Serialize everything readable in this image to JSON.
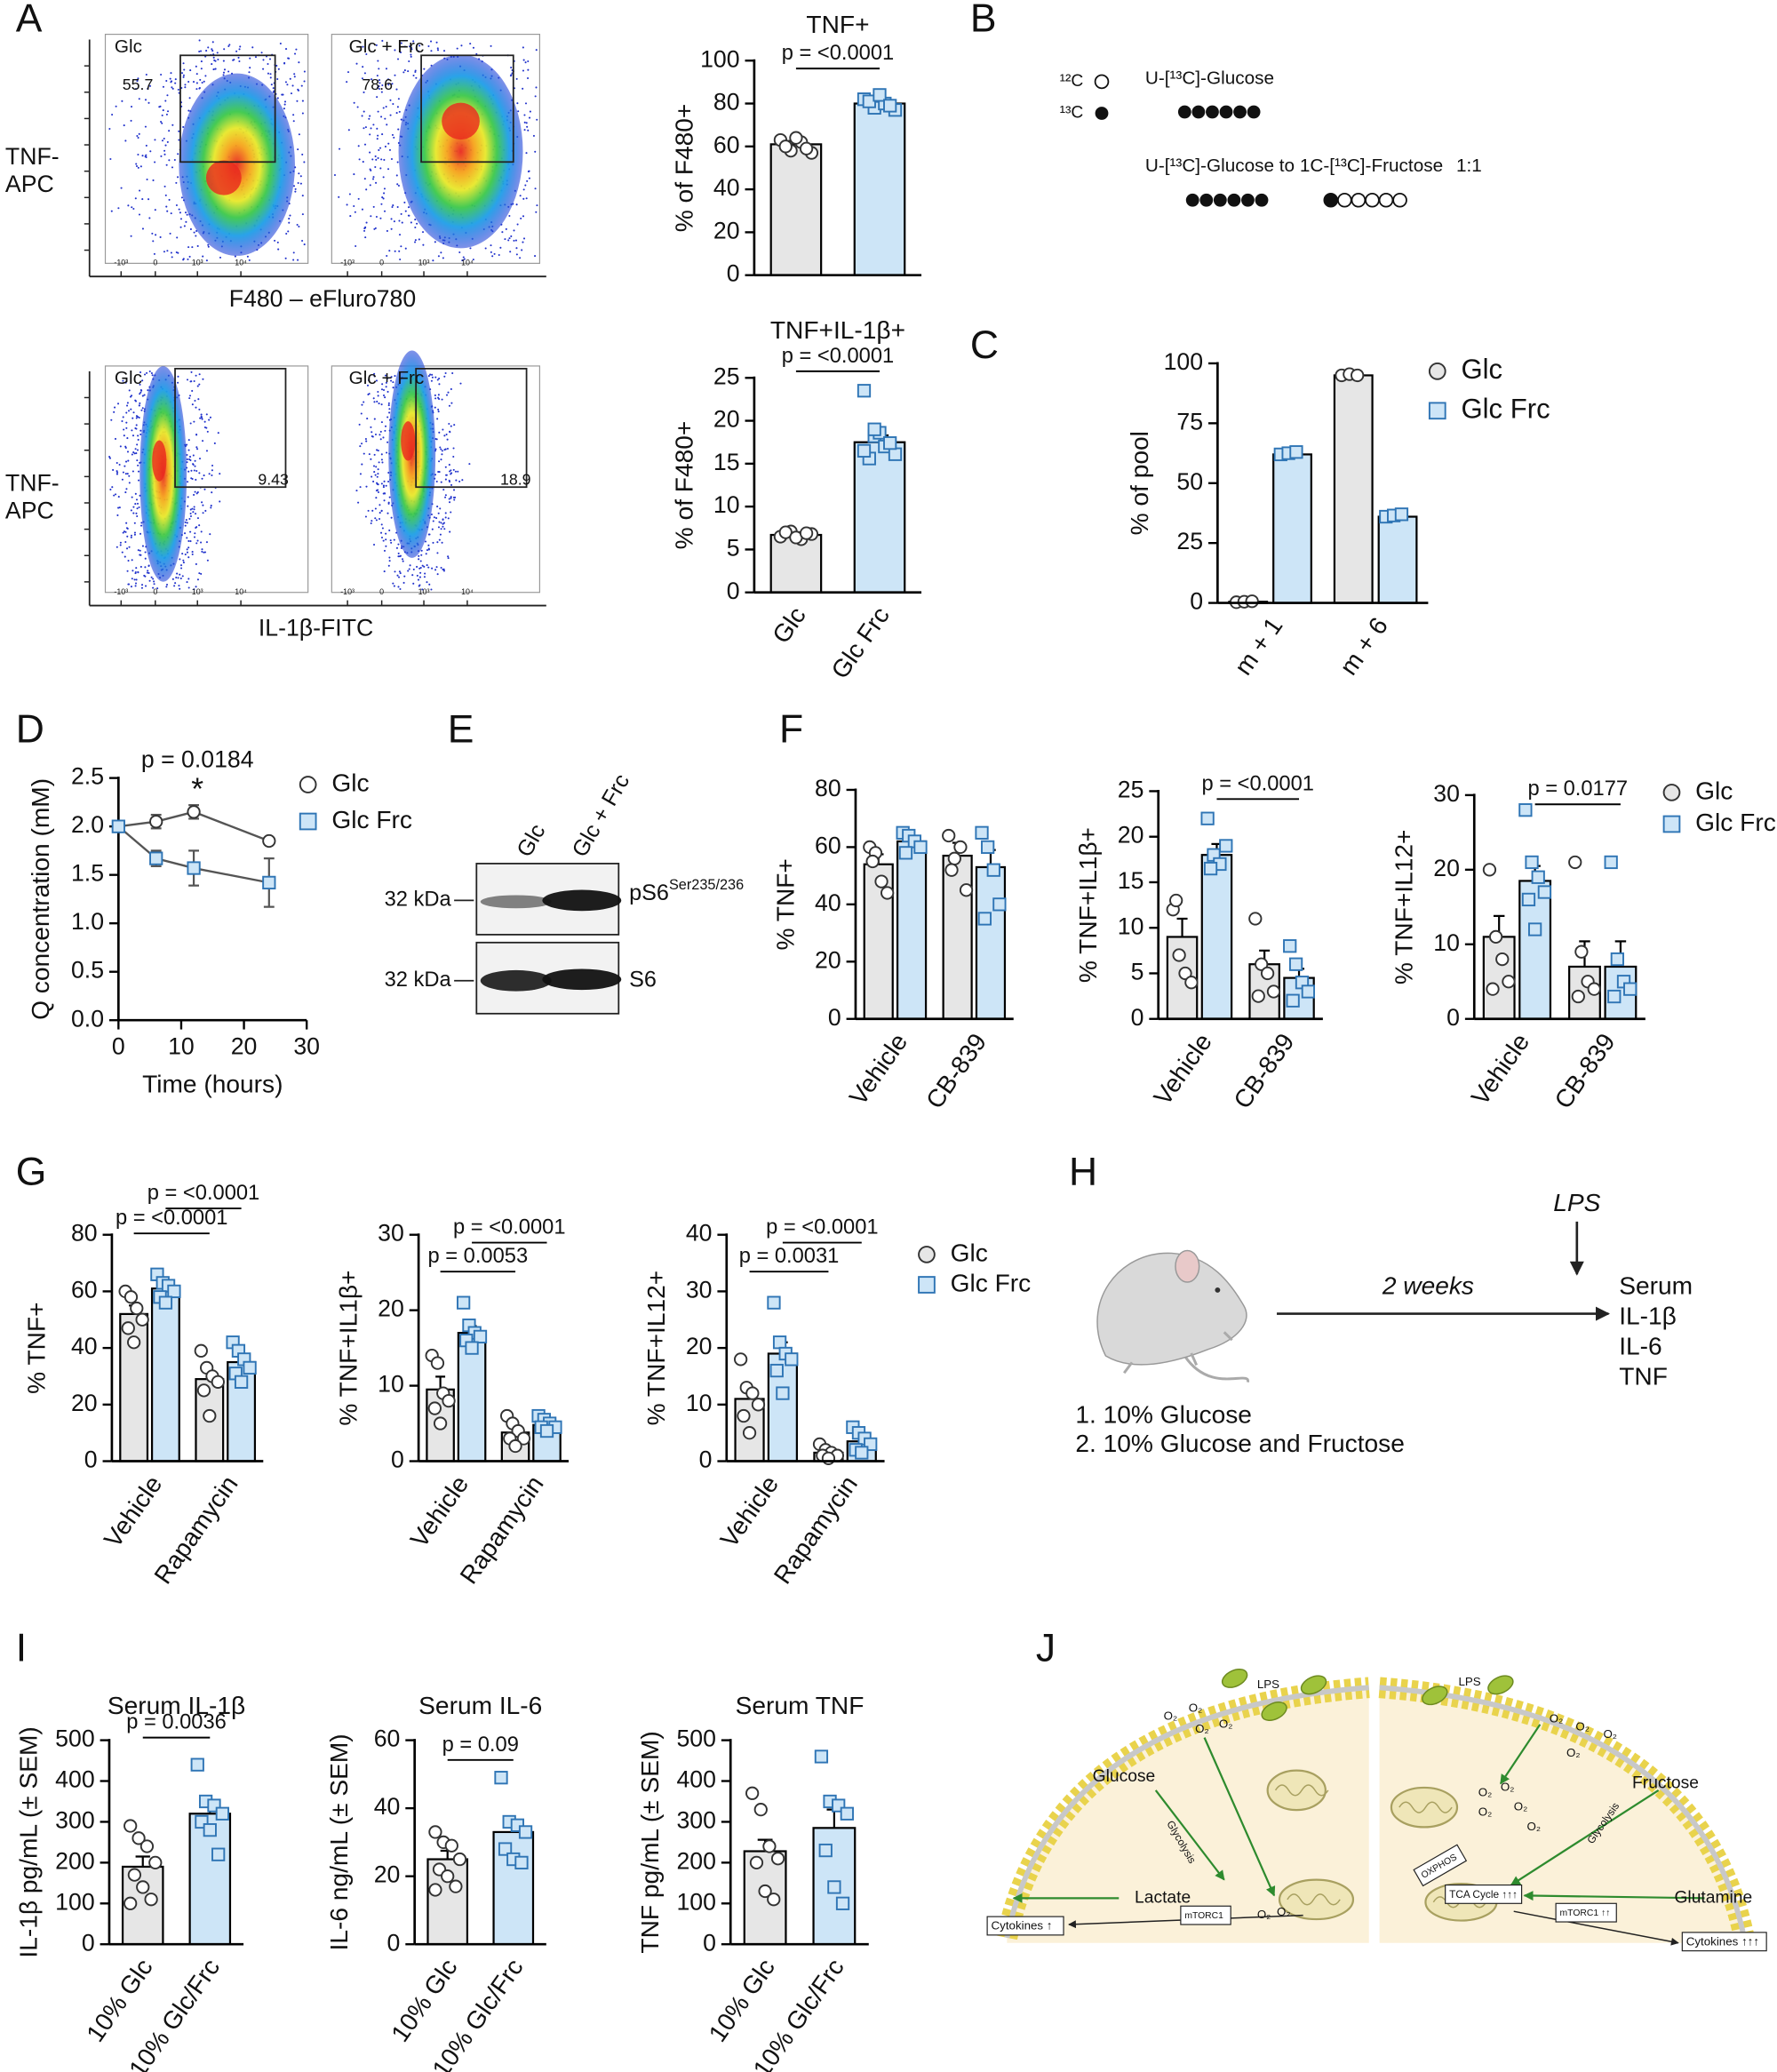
{
  "panel_labels": [
    "A",
    "B",
    "C",
    "D",
    "E",
    "F",
    "G",
    "H",
    "I",
    "J"
  ],
  "flow": {
    "top": {
      "left_title": "Glc",
      "right_title": "Glc + Frc",
      "left_gate": "55.7",
      "right_gate": "78.6",
      "y_label": [
        "TNF-",
        "APC"
      ],
      "x_label": "F480 – eFluro780"
    },
    "bottom": {
      "left_title": "Glc",
      "right_title": "Glc + Frc",
      "left_gate": "9.43",
      "right_gate": "18.9",
      "y_label": [
        "TNF-",
        "APC"
      ],
      "x_label": "IL-1β-FITC"
    },
    "axis_ticks": [
      "-10³",
      "0",
      "10³",
      "10⁴"
    ]
  },
  "isotope": {
    "c12": "¹²C",
    "c13": "¹³C",
    "tracer1": "U-[¹³C]-Glucose",
    "tracer2": "U-[¹³C]-Glucose to 1C-[¹³C]-Fructose",
    "ratio": "1:1"
  },
  "blot": {
    "lanes": [
      "Glc",
      "Glc + Frc"
    ],
    "markers": [
      "32 kDa",
      "32 kDa"
    ],
    "bands": [
      {
        "name": "pS6",
        "sup": "Ser235/236"
      },
      {
        "name": "S6"
      }
    ]
  },
  "schema": {
    "stimulus": "LPS",
    "duration": "2 weeks",
    "readouts": [
      "Serum",
      "IL-1β",
      "IL-6",
      "TNF"
    ],
    "diets": [
      "1. 10% Glucose",
      "2. 10% Glucose and Fructose"
    ]
  },
  "model": {
    "lps": "LPS",
    "o2": "O₂",
    "left": {
      "glucose": "Glucose",
      "glycolysis": "Glycolysis",
      "lactate": "Lactate",
      "cytokines": "Cytokines ↑",
      "mtorc1": "mTORC1"
    },
    "right": {
      "fructose": "Fructose",
      "glycolysis": "Glycolysis",
      "oxphos": "OXPHOS",
      "tca": "TCA Cycle ↑↑↑",
      "mtorc1": "mTORC1 ↑↑",
      "glutamine": "Glutamine",
      "cytokines": "Cytokines ↑↑↑"
    }
  },
  "chart_data": [
    {
      "type": "bar",
      "title": "TNF+",
      "ylabel": "% of F480+",
      "categories": [
        null,
        null
      ],
      "values": [
        61,
        80
      ],
      "errors": [
        1.5,
        1.2
      ],
      "points": [
        [
          63,
          58,
          62,
          57,
          60,
          64,
          59
        ],
        [
          82,
          78,
          80,
          77,
          81,
          84,
          79
        ]
      ],
      "colors": [
        "#e6e6e6",
        "#cde5f7"
      ],
      "edges": [
        "#333333",
        "#2f75b5"
      ],
      "markers": [
        "circle",
        "square"
      ],
      "ylim": [
        0,
        100
      ],
      "yticks": [
        0,
        20,
        40,
        60,
        80,
        100
      ],
      "annotations": [
        "p = <0.0001"
      ]
    },
    {
      "type": "bar",
      "title": "TNF+IL-1β+",
      "ylabel": "% of F480+",
      "categories": [
        "Glc",
        "Glc Frc"
      ],
      "values": [
        6.7,
        17.5
      ],
      "errors": [
        0.3,
        0.8
      ],
      "points": [
        [
          6.5,
          7.1,
          6.2,
          6.8,
          7.0,
          6.4,
          6.9
        ],
        [
          23.5,
          18.2,
          17.0,
          16.1,
          15.6,
          18.6,
          17.4,
          16.5,
          19.0
        ]
      ],
      "colors": [
        "#e6e6e6",
        "#cde5f7"
      ],
      "edges": [
        "#333333",
        "#2f75b5"
      ],
      "markers": [
        "circle",
        "square"
      ],
      "ylim": [
        0,
        25
      ],
      "yticks": [
        0,
        5,
        10,
        15,
        20,
        25
      ],
      "annotations": [
        "p = <0.0001"
      ]
    },
    {
      "type": "bar",
      "ylabel": "% of pool",
      "categories": [
        "m + 1",
        "m + 6"
      ],
      "legend": "right",
      "series": [
        {
          "name": "Glc",
          "color": "#e6e6e6",
          "edge": "#333333",
          "marker": "circle",
          "values": [
            0.5,
            95
          ],
          "errors": [
            0.2,
            0.5
          ],
          "points": [
            [
              0.3,
              0.5,
              0.7
            ],
            [
              95,
              95.5,
              95
            ]
          ]
        },
        {
          "name": "Glc Frc",
          "color": "#cde5f7",
          "edge": "#2f75b5",
          "marker": "square",
          "values": [
            62,
            36
          ],
          "errors": [
            0.8,
            0.6
          ],
          "points": [
            [
              62,
              62.5,
              63
            ],
            [
              36,
              36.5,
              37
            ]
          ]
        }
      ],
      "ylim": [
        0,
        100
      ],
      "yticks": [
        0,
        25,
        50,
        75,
        100
      ]
    },
    {
      "type": "line",
      "ylabel": "Q concentration (mM)",
      "xlabel": "Time (hours)",
      "x": [
        0,
        6,
        12,
        24
      ],
      "legend": "right",
      "line_color": "#555555",
      "series": [
        {
          "name": "Glc",
          "color": "#ffffff",
          "edge": "#333333",
          "marker": "circle",
          "values": [
            2.0,
            2.05,
            2.15,
            1.85
          ],
          "errors": [
            0,
            0.07,
            0.07,
            0
          ]
        },
        {
          "name": "Glc Frc",
          "color": "#cde5f7",
          "edge": "#2f75b5",
          "marker": "square",
          "values": [
            2.0,
            1.67,
            1.57,
            1.42
          ],
          "errors": [
            0,
            0.08,
            0.18,
            0.25
          ]
        }
      ],
      "xlim": [
        0,
        30
      ],
      "xticks": [
        0,
        10,
        20,
        30
      ],
      "ylim": [
        0,
        2.5
      ],
      "yticks": [
        {
          "value": 0,
          "label": "0.0"
        },
        {
          "value": 0.5,
          "label": "0.5"
        },
        {
          "value": 1,
          "label": "1.0"
        },
        {
          "value": 1.5,
          "label": "1.5"
        },
        {
          "value": 2,
          "label": "2.0"
        },
        {
          "value": 2.5,
          "label": "2.5"
        }
      ],
      "annotations": [
        "p = 0.0184",
        "*"
      ]
    },
    {
      "type": "bar",
      "ylabel": "% TNF+",
      "categories": [
        "Vehicle",
        "CB-839"
      ],
      "series": [
        {
          "name": "Glc",
          "color": "#e6e6e6",
          "edge": "#333333",
          "marker": "circle",
          "values": [
            54,
            57
          ],
          "errors": [
            3.5,
            4.5
          ],
          "points": [
            [
              60,
              58,
              48,
              44,
              55
            ],
            [
              64,
              56,
              60,
              45,
              52
            ]
          ]
        },
        {
          "name": "Glc Frc",
          "color": "#cde5f7",
          "edge": "#2f75b5",
          "marker": "square",
          "values": [
            62,
            53
          ],
          "errors": [
            1.8,
            6
          ],
          "points": [
            [
              65,
              64,
              62,
              60,
              58
            ],
            [
              65,
              60,
              52,
              40,
              35
            ]
          ]
        }
      ],
      "ylim": [
        0,
        80
      ],
      "yticks": [
        0,
        20,
        40,
        60,
        80
      ]
    },
    {
      "type": "bar",
      "ylabel": "% TNF+IL1β+",
      "categories": [
        "Vehicle",
        "CB-839"
      ],
      "series": [
        {
          "name": "Glc",
          "color": "#e6e6e6",
          "edge": "#333333",
          "marker": "circle",
          "values": [
            9,
            6
          ],
          "errors": [
            2,
            1.5
          ],
          "points": [
            [
              12,
              7,
              5,
              4,
              13
            ],
            [
              11,
              6,
              5,
              3,
              2.5
            ]
          ]
        },
        {
          "name": "Glc Frc",
          "color": "#cde5f7",
          "edge": "#2f75b5",
          "marker": "square",
          "values": [
            18,
            4.5
          ],
          "errors": [
            1.2,
            1
          ],
          "points": [
            [
              22,
              18,
              17,
              19,
              16.5
            ],
            [
              8,
              6,
              4,
              3,
              2
            ]
          ]
        }
      ],
      "ylim": [
        0,
        25
      ],
      "yticks": [
        0,
        5,
        10,
        15,
        20,
        25
      ],
      "annotations": [
        "p = <0.0001"
      ]
    },
    {
      "type": "bar",
      "ylabel": "% TNF+IL12+",
      "categories": [
        "Vehicle",
        "CB-839"
      ],
      "legend": "right",
      "series": [
        {
          "name": "Glc",
          "color": "#e6e6e6",
          "edge": "#333333",
          "marker": "circle",
          "values": [
            11,
            7
          ],
          "errors": [
            2.8,
            3.4
          ],
          "points": [
            [
              20,
              11,
              8,
              5,
              4
            ],
            [
              21,
              9,
              5,
              4,
              3
            ]
          ]
        },
        {
          "name": "Glc Frc",
          "color": "#cde5f7",
          "edge": "#2f75b5",
          "marker": "square",
          "values": [
            18.5,
            7
          ],
          "errors": [
            2,
            3.4
          ],
          "points": [
            [
              28,
              21,
              19,
              17,
              16,
              12
            ],
            [
              21,
              8,
              5,
              4,
              3
            ]
          ]
        }
      ],
      "ylim": [
        0,
        30
      ],
      "yticks": [
        0,
        10,
        20,
        30
      ],
      "annotations": [
        "p = 0.0177"
      ]
    },
    {
      "type": "bar",
      "ylabel": "% TNF+",
      "categories": [
        "Vehicle",
        "Rapamycin"
      ],
      "series": [
        {
          "name": "Glc",
          "color": "#e6e6e6",
          "edge": "#333333",
          "marker": "circle",
          "values": [
            52,
            29
          ],
          "errors": [
            3,
            3
          ],
          "points": [
            [
              60,
              58,
              54,
              50,
              47,
              42
            ],
            [
              39,
              33,
              30,
              28,
              25,
              16
            ]
          ]
        },
        {
          "name": "Glc Frc",
          "color": "#cde5f7",
          "edge": "#2f75b5",
          "marker": "square",
          "values": [
            61,
            35
          ],
          "errors": [
            1.6,
            2
          ],
          "points": [
            [
              66,
              63,
              62,
              60,
              58,
              56
            ],
            [
              42,
              39,
              36,
              33,
              31,
              28
            ]
          ]
        }
      ],
      "ylim": [
        0,
        80
      ],
      "yticks": [
        0,
        20,
        40,
        60,
        80
      ],
      "annotations": [
        "p = <0.0001",
        "p = <0.0001"
      ]
    },
    {
      "type": "bar",
      "ylabel": "% TNF+IL1β+",
      "categories": [
        "Vehicle",
        "Rapamycin"
      ],
      "series": [
        {
          "name": "Glc",
          "color": "#e6e6e6",
          "edge": "#333333",
          "marker": "circle",
          "values": [
            9.5,
            3.8
          ],
          "errors": [
            1.7,
            0.6
          ],
          "points": [
            [
              14,
              13,
              9,
              8,
              7,
              5
            ],
            [
              6,
              5,
              4,
              3,
              3,
              2
            ]
          ]
        },
        {
          "name": "Glc Frc",
          "color": "#cde5f7",
          "edge": "#2f75b5",
          "marker": "square",
          "values": [
            17,
            4.8
          ],
          "errors": [
            0.9,
            0.4
          ],
          "points": [
            [
              21,
              18,
              17,
              16.5,
              16,
              15
            ],
            [
              6,
              5.5,
              5,
              4.5,
              4.5,
              4
            ]
          ]
        }
      ],
      "ylim": [
        0,
        30
      ],
      "yticks": [
        0,
        10,
        20,
        30
      ],
      "annotations": [
        "p = 0.0053",
        "p = <0.0001"
      ]
    },
    {
      "type": "bar",
      "ylabel": "% TNF+IL12+",
      "categories": [
        "Vehicle",
        "Rapamycin"
      ],
      "legend": "right",
      "series": [
        {
          "name": "Glc",
          "color": "#e6e6e6",
          "edge": "#333333",
          "marker": "circle",
          "values": [
            11,
            1.5
          ],
          "errors": [
            2,
            0.5
          ],
          "points": [
            [
              18,
              13,
              12,
              10,
              8,
              5
            ],
            [
              3,
              2,
              1.5,
              1,
              1,
              0.5
            ]
          ]
        },
        {
          "name": "Glc Frc",
          "color": "#cde5f7",
          "edge": "#2f75b5",
          "marker": "square",
          "values": [
            19,
            3.5
          ],
          "errors": [
            2,
            0.8
          ],
          "points": [
            [
              28,
              21,
              19,
              18,
              16,
              12
            ],
            [
              6,
              5,
              4,
              3,
              2,
              1.5
            ]
          ]
        }
      ],
      "ylim": [
        0,
        40
      ],
      "yticks": [
        0,
        10,
        20,
        30,
        40
      ],
      "annotations": [
        "p = 0.0031",
        "p = <0.0001"
      ]
    },
    {
      "type": "bar",
      "title": "Serum IL-1β",
      "ylabel": "IL-1β pg/mL (± SEM)",
      "categories": [
        "10% Glc",
        "10% Glc/Frc"
      ],
      "values": [
        190,
        320
      ],
      "errors": [
        25,
        30
      ],
      "points": [
        [
          290,
          260,
          240,
          200,
          170,
          140,
          110,
          100
        ],
        [
          440,
          350,
          340,
          320,
          300,
          280,
          220
        ]
      ],
      "colors": [
        "#e6e6e6",
        "#cde5f7"
      ],
      "edges": [
        "#333333",
        "#2f75b5"
      ],
      "markers": [
        "circle",
        "square"
      ],
      "ylim": [
        0,
        500
      ],
      "yticks": [
        0,
        100,
        200,
        300,
        400,
        500
      ],
      "annotations": [
        "p = 0.0036"
      ]
    },
    {
      "type": "bar",
      "title": "Serum IL-6",
      "ylabel": "IL-6 ng/mL (± SEM)",
      "categories": [
        "10% Glc",
        "10% Glc/Frc"
      ],
      "values": [
        25,
        33
      ],
      "errors": [
        2.5,
        3.5
      ],
      "points": [
        [
          33,
          30,
          29,
          25,
          22,
          20,
          17,
          16
        ],
        [
          49,
          36,
          35,
          33,
          28,
          25,
          24
        ]
      ],
      "colors": [
        "#e6e6e6",
        "#cde5f7"
      ],
      "edges": [
        "#333333",
        "#2f75b5"
      ],
      "markers": [
        "circle",
        "square"
      ],
      "ylim": [
        0,
        60
      ],
      "yticks": [
        0,
        20,
        40,
        60
      ],
      "annotations": [
        "p = 0.09"
      ]
    },
    {
      "type": "bar",
      "title": "Serum TNF",
      "ylabel": "TNF pg/mL (± SEM)",
      "categories": [
        "10% Glc",
        "10% Glc/Frc"
      ],
      "values": [
        228,
        285
      ],
      "errors": [
        28,
        45
      ],
      "points": [
        [
          370,
          330,
          240,
          210,
          200,
          130,
          110
        ],
        [
          460,
          350,
          340,
          320,
          230,
          140,
          100
        ]
      ],
      "colors": [
        "#e6e6e6",
        "#cde5f7"
      ],
      "edges": [
        "#333333",
        "#2f75b5"
      ],
      "markers": [
        "circle",
        "square"
      ],
      "ylim": [
        0,
        500
      ],
      "yticks": [
        0,
        100,
        200,
        300,
        400,
        500
      ]
    }
  ]
}
